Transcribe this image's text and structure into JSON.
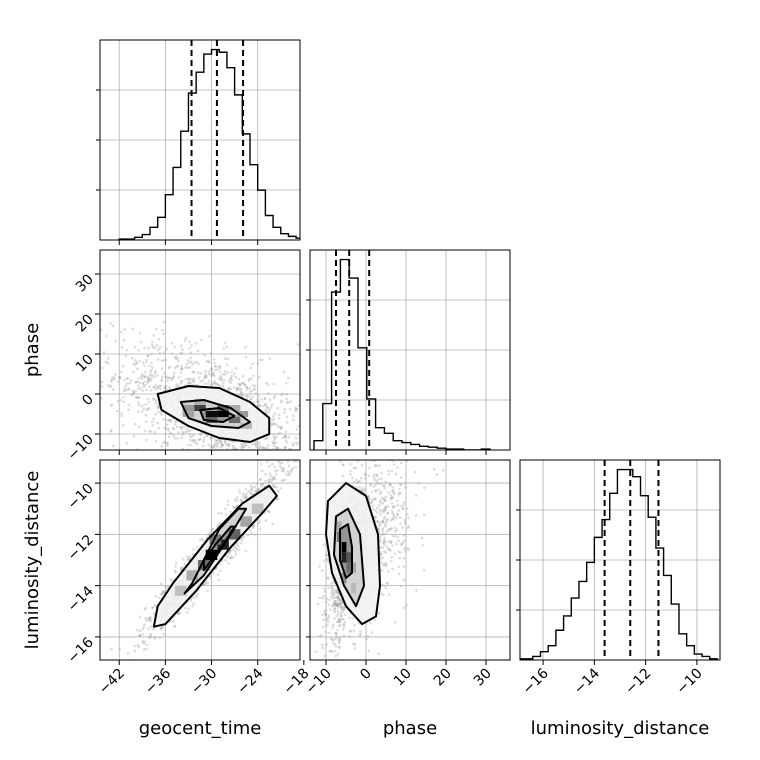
{
  "chart_data": {
    "type": "corner",
    "parameters": [
      "geocent_time",
      "phase",
      "luminosity_distance"
    ],
    "grid": true,
    "ranges": {
      "geocent_time": [
        -44.5,
        -18.5
      ],
      "phase": [
        -14,
        36
      ],
      "luminosity_distance": [
        -16.9,
        -9.1
      ]
    },
    "ticks": {
      "geocent_time": [
        -42,
        -36,
        -30,
        -24,
        -18
      ],
      "phase": [
        -10,
        0,
        10,
        20,
        30
      ],
      "luminosity_distance": [
        -16,
        -14,
        -12,
        -10
      ]
    },
    "tick_labels": {
      "geocent_time": [
        "−42",
        "−36",
        "−30",
        "−24",
        "−18"
      ],
      "phase": [
        "−10",
        "0",
        "10",
        "20",
        "30"
      ],
      "luminosity_distance": [
        "−16",
        "−14",
        "−12",
        "−10"
      ]
    },
    "quantiles": {
      "geocent_time": [
        -32.6,
        -29.3,
        -25.9
      ],
      "phase": [
        -7.5,
        -4.2,
        0.8
      ],
      "luminosity_distance": [
        -13.6,
        -12.6,
        -11.5
      ]
    },
    "histograms": {
      "geocent_time": {
        "bin_edges": [
          -42,
          -41,
          -40,
          -39,
          -38,
          -37,
          -36,
          -35,
          -34,
          -33,
          -32,
          -31,
          -30,
          -29,
          -28,
          -27,
          -26,
          -25,
          -24,
          -23,
          -22,
          -21,
          -20,
          -19,
          -18
        ],
        "counts": [
          1,
          1,
          3,
          6,
          14,
          25,
          50,
          80,
          120,
          162,
          185,
          205,
          210,
          207,
          190,
          160,
          117,
          83,
          55,
          27,
          14,
          7,
          4,
          2
        ]
      },
      "phase": {
        "bin_edges": [
          -13,
          -10.8,
          -8.6,
          -6.4,
          -4.2,
          -2,
          0.2,
          2.4,
          4.6,
          6.8,
          9,
          11.2,
          13.4,
          15.6,
          17.8,
          20,
          22.2,
          24.4,
          26.6,
          28.8,
          31
        ],
        "counts": [
          10,
          50,
          170,
          205,
          185,
          110,
          55,
          24,
          18,
          10,
          8,
          6,
          4,
          3,
          2,
          1,
          1,
          0,
          0,
          1
        ]
      },
      "luminosity_distance": {
        "bin_edges": [
          -17,
          -16.7,
          -16.4,
          -16.1,
          -15.8,
          -15.5,
          -15.2,
          -14.9,
          -14.6,
          -14.3,
          -14,
          -13.7,
          -13.4,
          -13.1,
          -12.8,
          -12.5,
          -12.2,
          -11.9,
          -11.6,
          -11.3,
          -11,
          -10.7,
          -10.4,
          -10.1,
          -9.8,
          -9.5,
          -9.2
        ],
        "counts": [
          1,
          1,
          3,
          7,
          12,
          25,
          37,
          52,
          66,
          82,
          103,
          118,
          140,
          160,
          160,
          154,
          138,
          120,
          94,
          71,
          47,
          22,
          12,
          5,
          3,
          1
        ]
      }
    },
    "pairs": [
      {
        "x": "geocent_time",
        "y": "phase",
        "mean": [
          -29.5,
          -5.2
        ],
        "sigma": [
          3.8,
          3.6
        ],
        "correlation": -0.55,
        "outlier_sigma": [
          6.5,
          9.0
        ],
        "n_points": 1500,
        "contours": [
          [
            [
              -37,
              0
            ],
            [
              -33,
              2
            ],
            [
              -29,
              1.5
            ],
            [
              -25,
              -2
            ],
            [
              -22.5,
              -6
            ],
            [
              -22.5,
              -10
            ],
            [
              -25,
              -12
            ],
            [
              -29,
              -11
            ],
            [
              -33,
              -8
            ],
            [
              -36.5,
              -4
            ]
          ],
          [
            [
              -34,
              -2
            ],
            [
              -31,
              -1.5
            ],
            [
              -27.5,
              -3.5
            ],
            [
              -25,
              -7
            ],
            [
              -26.5,
              -8.5
            ],
            [
              -30,
              -8
            ],
            [
              -33,
              -6
            ]
          ],
          [
            [
              -31.5,
              -4
            ],
            [
              -29,
              -3.5
            ],
            [
              -27,
              -5.5
            ],
            [
              -28.5,
              -7
            ],
            [
              -31,
              -6.5
            ]
          ]
        ],
        "density_cells": [
          [
            -30,
            -5,
            0.95
          ],
          [
            -28.5,
            -5,
            1
          ],
          [
            -31.5,
            -3.5,
            0.7
          ],
          [
            -28.5,
            -3.5,
            0.55
          ],
          [
            -30,
            -6.5,
            0.55
          ],
          [
            -27,
            -6.5,
            0.5
          ],
          [
            -33,
            -3.5,
            0.3
          ],
          [
            -26,
            -5,
            0.3
          ],
          [
            -27,
            -3.5,
            0.2
          ],
          [
            -31.5,
            -2,
            0.18
          ],
          [
            -25.5,
            -8,
            0.15
          ],
          [
            -33,
            -5,
            0.25
          ]
        ]
      },
      {
        "x": "geocent_time",
        "y": "luminosity_distance",
        "mean": [
          -29.5,
          -12.6
        ],
        "sigma": [
          3.8,
          1.25
        ],
        "correlation": 0.96,
        "outlier_sigma": [
          4.5,
          1.6
        ],
        "n_points": 1500,
        "contours": [
          [
            [
              -37,
              -14.8
            ],
            [
              -37.5,
              -15.6
            ],
            [
              -36,
              -15.5
            ],
            [
              -32,
              -14.2
            ],
            [
              -27.5,
              -12.5
            ],
            [
              -23.5,
              -11.2
            ],
            [
              -21.5,
              -10.5
            ],
            [
              -22.5,
              -10.1
            ],
            [
              -26,
              -10.8
            ],
            [
              -30.5,
              -12.2
            ],
            [
              -35,
              -13.9
            ]
          ],
          [
            [
              -32.5,
              -13.9
            ],
            [
              -33.5,
              -14.3
            ],
            [
              -31,
              -13.6
            ],
            [
              -27.5,
              -12
            ],
            [
              -25.5,
              -11
            ],
            [
              -26.5,
              -11
            ],
            [
              -29,
              -11.8
            ]
          ],
          [
            [
              -31,
              -13
            ],
            [
              -31,
              -13.4
            ],
            [
              -28.5,
              -12.4
            ],
            [
              -27,
              -11.7
            ],
            [
              -27.5,
              -11.7
            ],
            [
              -29.5,
              -12.4
            ]
          ]
        ],
        "density_cells": [
          [
            -30,
            -12.8,
            1
          ],
          [
            -28.5,
            -12.4,
            0.85
          ],
          [
            -31,
            -13.2,
            0.5
          ],
          [
            -27,
            -12,
            0.55
          ],
          [
            -29.5,
            -12.2,
            0.45
          ],
          [
            -32.5,
            -13.6,
            0.2
          ],
          [
            -25.5,
            -11.5,
            0.25
          ],
          [
            -34,
            -14.2,
            0.12
          ],
          [
            -24,
            -11,
            0.12
          ]
        ]
      },
      {
        "x": "phase",
        "y": "luminosity_distance",
        "mean": [
          -4.2,
          -12.6
        ],
        "sigma": [
          3.8,
          1.25
        ],
        "correlation": 0.5,
        "outlier_sigma": [
          9.0,
          1.6
        ],
        "n_points": 1500,
        "contours": [
          [
            [
              -9.5,
              -10.7
            ],
            [
              -5,
              -10
            ],
            [
              0,
              -10.5
            ],
            [
              3,
              -12
            ],
            [
              3.5,
              -14
            ],
            [
              2.5,
              -15.2
            ],
            [
              -1,
              -15.5
            ],
            [
              -5,
              -14.8
            ],
            [
              -8.5,
              -13.5
            ],
            [
              -10,
              -12
            ]
          ],
          [
            [
              -7.5,
              -11.3
            ],
            [
              -4.5,
              -11
            ],
            [
              -1.5,
              -12
            ],
            [
              -0.5,
              -14
            ],
            [
              -2.5,
              -14.8
            ],
            [
              -5.5,
              -14
            ],
            [
              -8,
              -12.8
            ]
          ],
          [
            [
              -6.5,
              -11.8
            ],
            [
              -4.5,
              -11.6
            ],
            [
              -3.5,
              -12.5
            ],
            [
              -3.5,
              -13.5
            ],
            [
              -5,
              -13.7
            ],
            [
              -6.5,
              -13
            ]
          ]
        ],
        "density_cells": [
          [
            -5.5,
            -12.5,
            1
          ],
          [
            -5.5,
            -12.9,
            0.85
          ],
          [
            -4.3,
            -12.9,
            0.6
          ],
          [
            -6.7,
            -12.1,
            0.45
          ],
          [
            -4.3,
            -13.3,
            0.5
          ],
          [
            -5.5,
            -13.7,
            0.35
          ],
          [
            -3.1,
            -13.3,
            0.25
          ],
          [
            -6.7,
            -11.7,
            0.2
          ],
          [
            -3.1,
            -14.1,
            0.15
          ]
        ]
      }
    ]
  }
}
